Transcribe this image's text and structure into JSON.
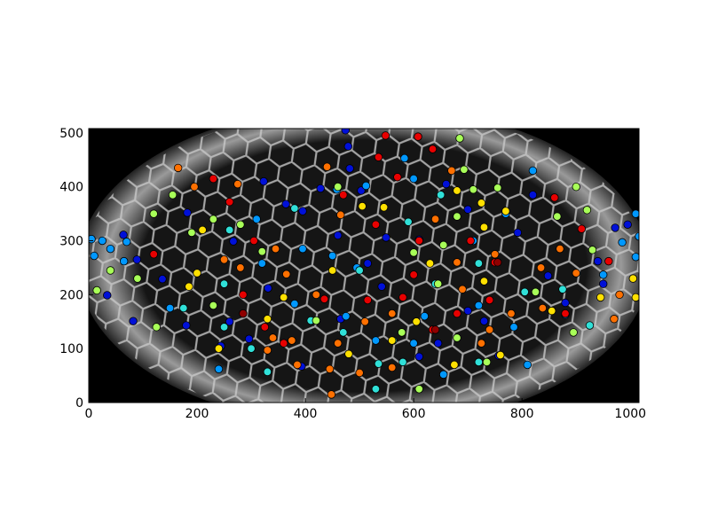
{
  "chart_data": {
    "type": "scatter",
    "xlim": [
      0,
      1016
    ],
    "ylim": [
      0,
      508
    ],
    "xticks": [
      0,
      200,
      400,
      600,
      800,
      1000
    ],
    "yticks": [
      0,
      100,
      200,
      300,
      400,
      500
    ],
    "grid": false,
    "series": [
      {
        "color": "#0010d8",
        "x": [
          474,
          479,
          482,
          323,
          364,
          267,
          182,
          136,
          64,
          89,
          34,
          82,
          180,
          244,
          331,
          393,
          465,
          503,
          549,
          541,
          395,
          428,
          660,
          700,
          610,
          700,
          730,
          792,
          757,
          848,
          880,
          950,
          972,
          995,
          260,
          296,
          460,
          515,
          610,
          645,
          820,
          940
        ],
        "values": [
          505,
          475,
          434,
          410,
          368,
          299,
          352,
          229,
          311,
          265,
          199,
          151,
          143,
          105,
          212,
          67,
          155,
          393,
          306,
          215,
          355,
          397,
          405,
          358,
          302,
          170,
          151,
          315,
          87,
          235,
          185,
          220,
          324,
          330,
          150,
          118,
          310,
          258,
          85,
          110,
          385,
          262
        ]
      },
      {
        "color": "#0098ff",
        "x": [
          5,
          25,
          40,
          10,
          70,
          65,
          1016,
          1010,
          1010,
          985,
          810,
          950,
          880,
          770,
          820,
          600,
          583,
          512,
          458,
          320,
          395,
          655,
          495,
          530,
          450,
          475,
          150,
          710,
          310,
          240,
          600,
          720,
          380,
          620,
          785
        ],
        "values": [
          303,
          300,
          285,
          272,
          298,
          262,
          308,
          350,
          270,
          297,
          70,
          237,
          163,
          350,
          430,
          415,
          453,
          402,
          395,
          258,
          285,
          52,
          250,
          115,
          272,
          160,
          175,
          300,
          340,
          62,
          110,
          180,
          183,
          160,
          140
        ]
      },
      {
        "color": "#30e0d8",
        "x": [
          535,
          562,
          530,
          470,
          410,
          380,
          590,
          720,
          805,
          875,
          925,
          650,
          720,
          580,
          250,
          260,
          330,
          175,
          250,
          500,
          300,
          640
        ],
        "values": [
          72,
          115,
          25,
          130,
          152,
          360,
          335,
          258,
          205,
          210,
          143,
          385,
          75,
          75,
          140,
          320,
          57,
          175,
          220,
          245,
          100,
          220
        ]
      },
      {
        "color": "#a8ff58",
        "x": [
          685,
          693,
          710,
          755,
          680,
          655,
          645,
          610,
          735,
          578,
          600,
          920,
          930,
          15,
          40,
          90,
          120,
          155,
          230,
          280,
          320,
          460,
          420,
          680,
          825,
          900,
          865,
          895,
          190,
          125,
          230
        ],
        "values": [
          490,
          432,
          395,
          398,
          345,
          292,
          220,
          25,
          75,
          130,
          278,
          357,
          283,
          208,
          245,
          230,
          350,
          385,
          340,
          330,
          280,
          400,
          152,
          120,
          205,
          400,
          345,
          130,
          315,
          140,
          180
        ]
      },
      {
        "color": "#ffe000",
        "x": [
          505,
          545,
          725,
          730,
          770,
          680,
          630,
          730,
          760,
          675,
          1005,
          1010,
          945,
          360,
          210,
          200,
          185,
          240,
          330,
          450,
          480,
          560,
          605,
          855
        ],
        "values": [
          364,
          362,
          370,
          325,
          355,
          393,
          258,
          225,
          88,
          70,
          230,
          195,
          195,
          195,
          320,
          240,
          215,
          100,
          155,
          245,
          90,
          115,
          150,
          170
        ]
      },
      {
        "color": "#ff7000",
        "x": [
          165,
          440,
          465,
          365,
          345,
          640,
          670,
          680,
          690,
          750,
          740,
          725,
          780,
          838,
          835,
          870,
          900,
          980,
          970,
          448,
          560,
          500,
          445,
          385,
          330,
          280,
          250,
          420,
          560,
          340,
          375,
          510,
          195,
          275,
          460
        ],
        "values": [
          435,
          437,
          348,
          238,
          285,
          340,
          430,
          260,
          210,
          275,
          135,
          110,
          165,
          175,
          250,
          285,
          240,
          200,
          155,
          15,
          65,
          55,
          62,
          70,
          97,
          250,
          265,
          200,
          165,
          120,
          115,
          150,
          400,
          405,
          110
        ]
      },
      {
        "color": "#e80000",
        "x": [
          548,
          608,
          635,
          535,
          570,
          470,
          530,
          610,
          260,
          305,
          230,
          120,
          435,
          285,
          325,
          360,
          600,
          705,
          680,
          750,
          860,
          910,
          960,
          880,
          580,
          515,
          740,
          635
        ],
        "values": [
          495,
          493,
          470,
          455,
          418,
          385,
          330,
          300,
          372,
          300,
          415,
          275,
          192,
          200,
          140,
          110,
          237,
          300,
          165,
          260,
          380,
          322,
          262,
          165,
          195,
          190,
          190,
          135
        ]
      },
      {
        "color": "#900000",
        "x": [
          285,
          640,
          755
        ],
        "values": [
          165,
          135,
          260
        ]
      }
    ]
  }
}
